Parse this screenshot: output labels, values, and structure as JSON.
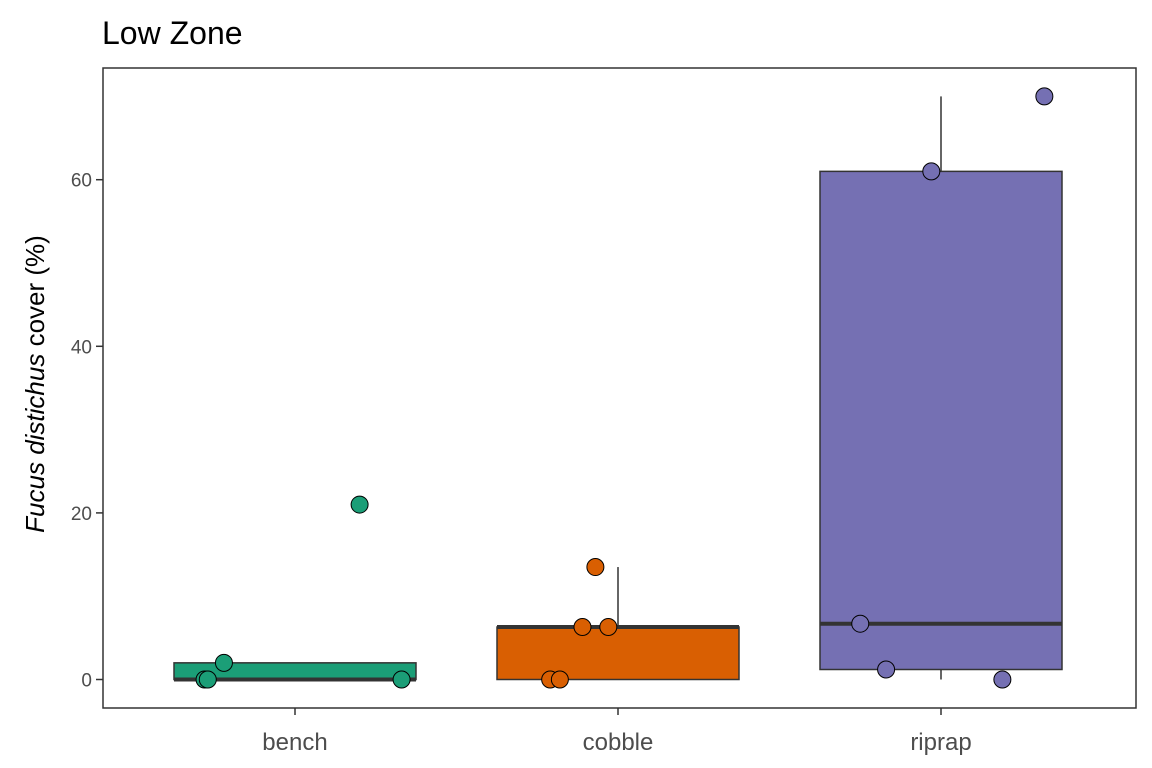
{
  "chart_data": {
    "type": "boxplot",
    "title": "Low Zone",
    "ylabel_italic": "Fucus distichus",
    "ylabel_rest": " cover (%)",
    "xlabel": "",
    "ylim": [
      -3.5,
      73
    ],
    "yticks": [
      0,
      20,
      40,
      60
    ],
    "grid": false,
    "legend": "none",
    "categories": [
      "bench",
      "cobble",
      "riprap"
    ],
    "colors": [
      "#1b9e77",
      "#d95f02",
      "#7570b3"
    ],
    "boxes": [
      {
        "category": "bench",
        "min": 0,
        "q1": 0,
        "median": 0,
        "q3": 2,
        "max": 2
      },
      {
        "category": "cobble",
        "min": 0,
        "q1": 0,
        "median": 6.3,
        "q3": 6.3,
        "max": 13.5
      },
      {
        "category": "riprap",
        "min": 0,
        "q1": 1.2,
        "median": 6.7,
        "q3": 61,
        "max": 70
      }
    ],
    "points": [
      {
        "category": "bench",
        "values": [
          21,
          2,
          0,
          0,
          0
        ],
        "jitter": [
          0.2,
          -0.22,
          -0.28,
          -0.27,
          0.33
        ]
      },
      {
        "category": "cobble",
        "values": [
          13.5,
          6.3,
          6.3,
          0,
          0
        ],
        "jitter": [
          -0.07,
          -0.11,
          -0.03,
          -0.21,
          -0.18
        ]
      },
      {
        "category": "riprap",
        "values": [
          70,
          61,
          6.7,
          1.2,
          0
        ],
        "jitter": [
          0.32,
          -0.03,
          -0.25,
          -0.17,
          0.19
        ]
      }
    ]
  }
}
